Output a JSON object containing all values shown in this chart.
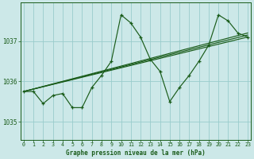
{
  "title": "Graphe pression niveau de la mer (hPa)",
  "bg_color": "#cce8e8",
  "grid_color": "#99cccc",
  "line_color": "#1a5c1a",
  "ylim": [
    1034.55,
    1037.95
  ],
  "xlim": [
    -0.3,
    23.3
  ],
  "yticks": [
    1035,
    1036,
    1037
  ],
  "xticks": [
    0,
    1,
    2,
    3,
    4,
    5,
    6,
    7,
    8,
    9,
    10,
    11,
    12,
    13,
    14,
    15,
    16,
    17,
    18,
    19,
    20,
    21,
    22,
    23
  ],
  "series1_x": [
    0,
    1,
    2,
    3,
    4,
    5,
    6,
    7,
    8,
    9,
    10,
    11,
    12,
    13,
    14,
    15,
    16,
    17,
    18,
    19,
    20,
    21,
    22,
    23
  ],
  "series1_y": [
    1035.75,
    1035.75,
    1035.45,
    1035.65,
    1035.7,
    1035.35,
    1035.35,
    1035.85,
    1036.15,
    1036.5,
    1037.65,
    1037.45,
    1037.1,
    1036.55,
    1036.25,
    1035.5,
    1035.85,
    1036.15,
    1036.5,
    1036.9,
    1037.65,
    1037.5,
    1037.2,
    1037.1
  ],
  "series2_x": [
    0,
    23
  ],
  "series2_y": [
    1035.75,
    1037.1
  ],
  "series3_x": [
    0,
    23
  ],
  "series3_y": [
    1035.75,
    1037.15
  ],
  "series4_x": [
    0,
    23
  ],
  "series4_y": [
    1035.75,
    1037.2
  ]
}
